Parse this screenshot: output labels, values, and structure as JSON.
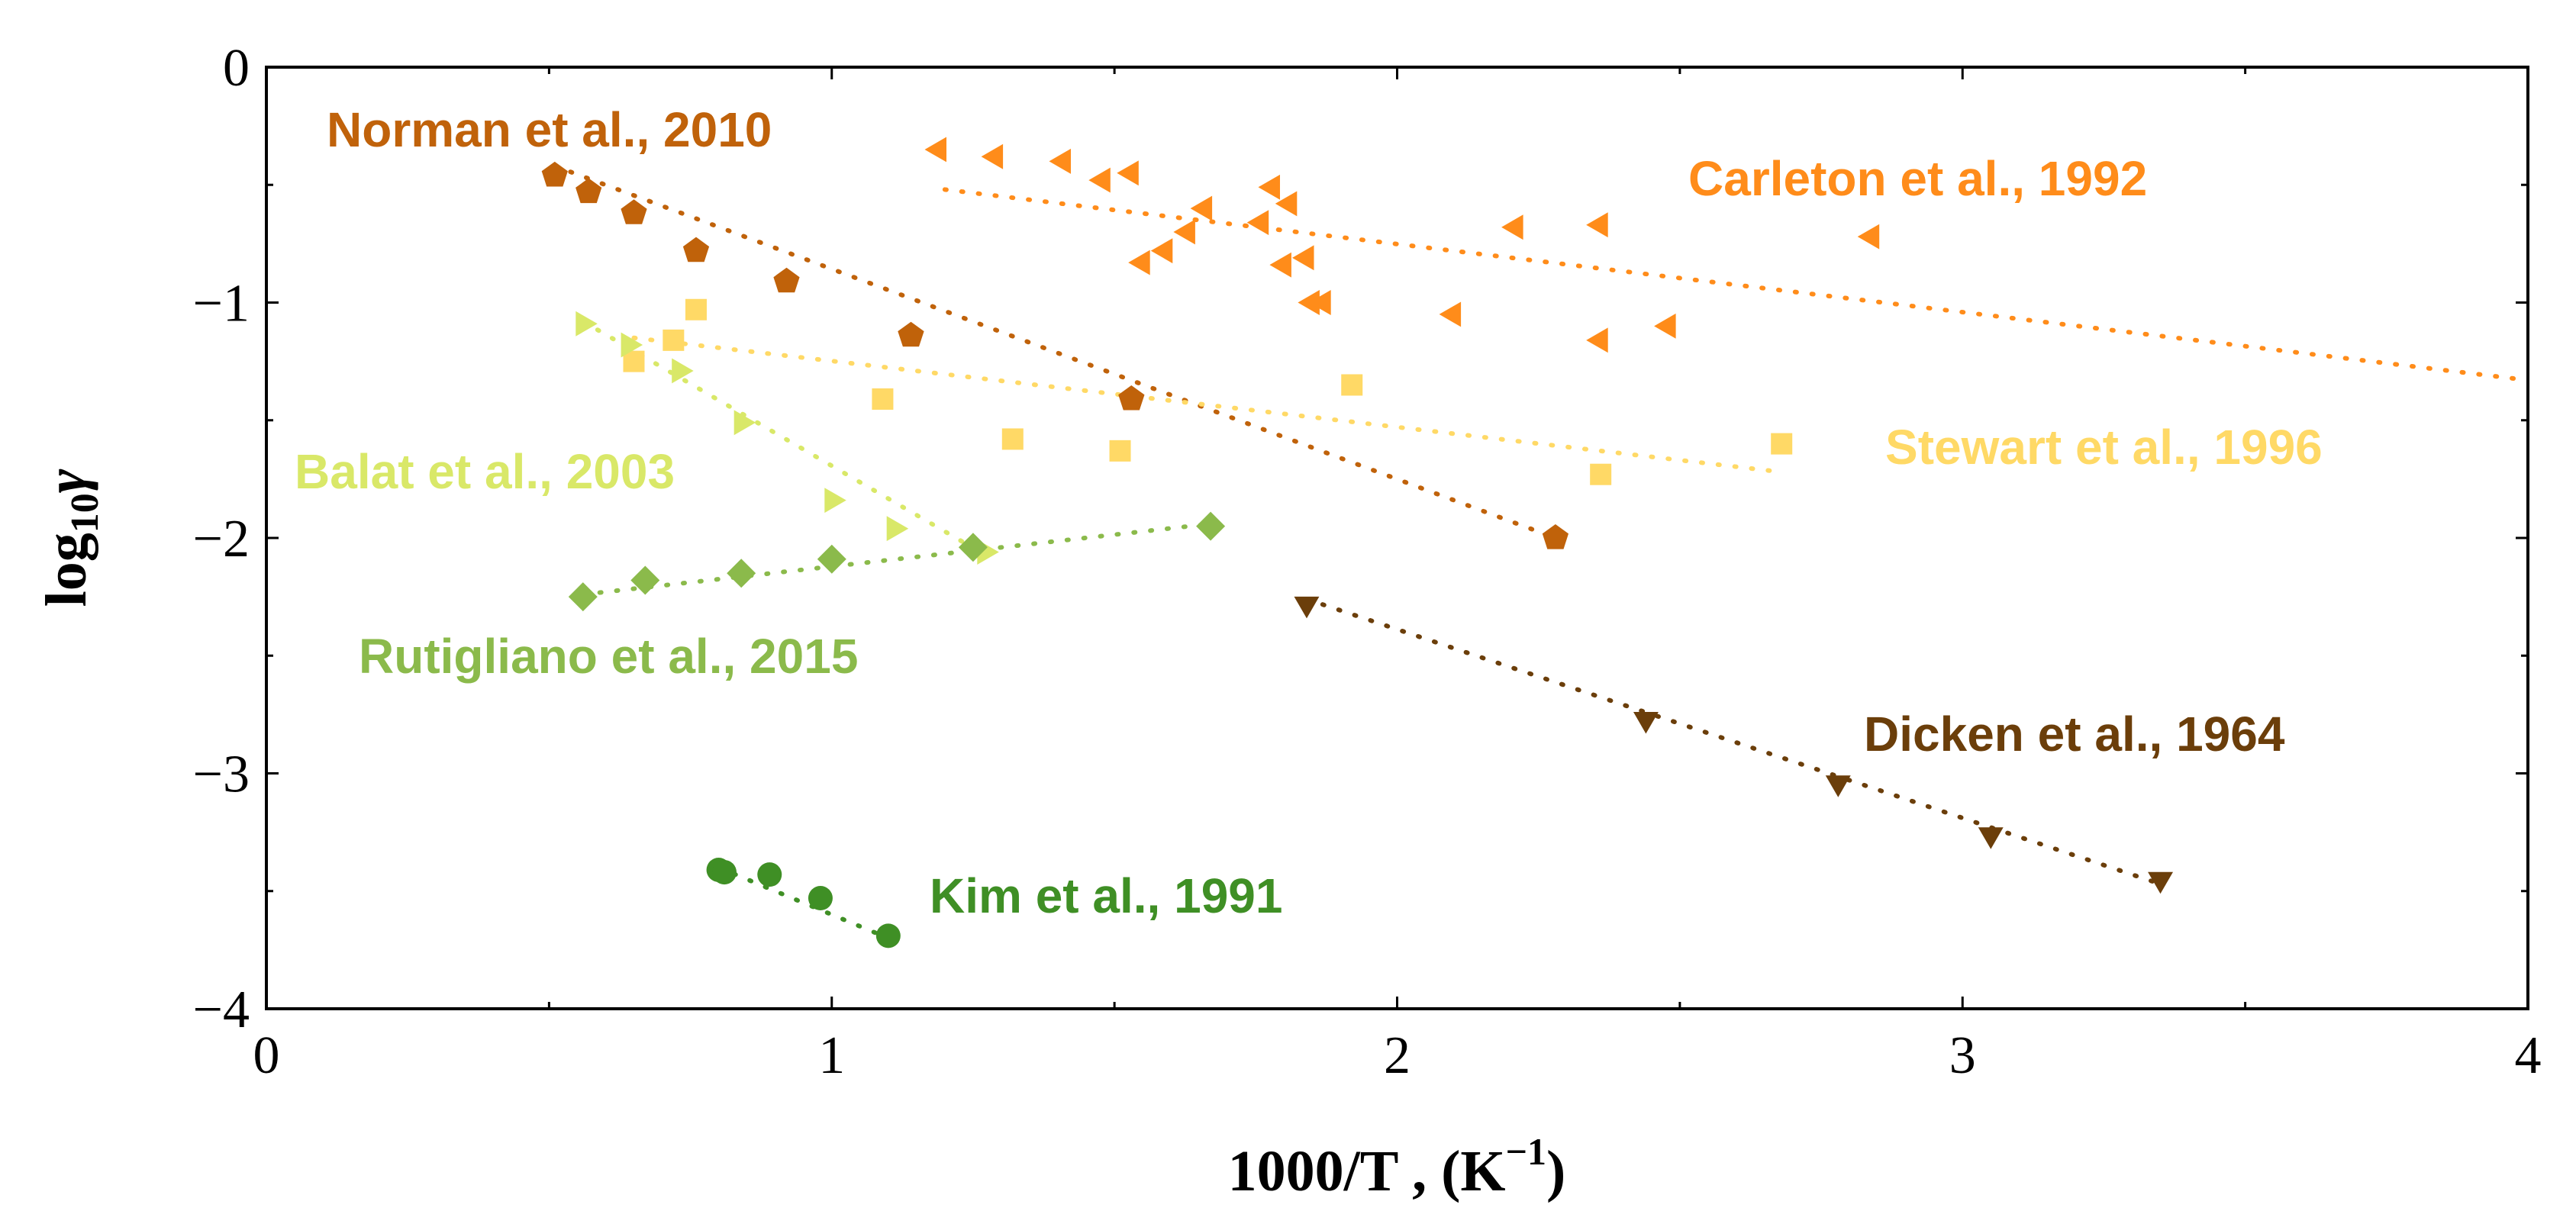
{
  "chart_data": {
    "type": "scatter",
    "title": "",
    "xlabel_main": "1000/T ,  (K",
    "xlabel_sup": "−1",
    "xlabel_tail": ")",
    "ylabel_main": "log",
    "ylabel_sub": "10",
    "ylabel_symbol": "γ",
    "xlim": [
      0,
      4
    ],
    "ylim": [
      -4,
      0
    ],
    "xticks": [
      0,
      1,
      2,
      3,
      4
    ],
    "xtick_labels": [
      "0",
      "1",
      "2",
      "3",
      "4"
    ],
    "yticks": [
      0,
      -1,
      -2,
      -3,
      -4
    ],
    "ytick_labels": [
      "0",
      "−1",
      "−2",
      "−3",
      "−4"
    ],
    "grid": false,
    "series": [
      {
        "name": "Norman et al., 2010",
        "color": "#C0620A",
        "marker": "pentagon",
        "x": [
          0.51,
          0.57,
          0.65,
          0.76,
          0.92,
          1.14,
          1.53,
          2.28
        ],
        "y": [
          -0.46,
          -0.53,
          -0.62,
          -0.78,
          -0.91,
          -1.14,
          -1.41,
          -2.0
        ],
        "fit": {
          "x": [
            0.51,
            2.28
          ],
          "y": [
            -0.42,
            -2.0
          ]
        }
      },
      {
        "name": "Carleton et al., 1992",
        "color": "#FF8C1A",
        "marker": "triangle-left",
        "x": [
          1.19,
          1.29,
          1.41,
          1.48,
          1.53,
          1.55,
          1.59,
          1.63,
          1.66,
          1.76,
          1.78,
          1.8,
          1.81,
          1.84,
          1.85,
          1.87,
          2.1,
          2.21,
          2.36,
          2.36,
          2.48,
          2.84
        ],
        "y": [
          -0.35,
          -0.38,
          -0.4,
          -0.48,
          -0.45,
          -0.83,
          -0.78,
          -0.7,
          -0.6,
          -0.66,
          -0.51,
          -0.84,
          -0.58,
          -0.81,
          -1.0,
          -1.0,
          -1.05,
          -0.68,
          -0.67,
          -1.16,
          -1.1,
          -0.72
        ],
        "fit": {
          "x": [
            1.2,
            4.0
          ],
          "y": [
            -0.52,
            -1.33
          ]
        }
      },
      {
        "name": "Stewart et al., 1996",
        "color": "#FFD966",
        "marker": "square",
        "x": [
          0.65,
          0.72,
          0.76,
          1.09,
          1.32,
          1.51,
          1.92,
          2.36,
          2.68
        ],
        "y": [
          -1.25,
          -1.16,
          -1.03,
          -1.41,
          -1.58,
          -1.63,
          -1.35,
          -1.73,
          -1.6
        ],
        "fit": {
          "x": [
            0.65,
            2.68
          ],
          "y": [
            -1.15,
            -1.72
          ]
        }
      },
      {
        "name": "Balat et al., 2003",
        "color": "#D9E868",
        "marker": "triangle-right",
        "x": [
          0.56,
          0.64,
          0.73,
          0.84,
          1.0,
          1.11,
          1.27
        ],
        "y": [
          -1.09,
          -1.18,
          -1.29,
          -1.51,
          -1.84,
          -1.96,
          -2.06
        ],
        "fit": {
          "x": [
            0.56,
            1.27
          ],
          "y": [
            -1.08,
            -2.07
          ]
        }
      },
      {
        "name": "Rutigliano et al., 2015",
        "color": "#8BBA4B",
        "marker": "diamond",
        "x": [
          0.56,
          0.67,
          0.84,
          1.0,
          1.25,
          1.67
        ],
        "y": [
          -2.25,
          -2.18,
          -2.15,
          -2.09,
          -2.04,
          -1.95
        ],
        "fit": {
          "x": [
            0.56,
            1.67
          ],
          "y": [
            -2.24,
            -1.94
          ]
        }
      },
      {
        "name": "Dicken et al., 1964",
        "color": "#6B3E0A",
        "marker": "triangle-down",
        "x": [
          1.84,
          2.44,
          2.78,
          3.05,
          3.35
        ],
        "y": [
          -2.28,
          -2.77,
          -3.04,
          -3.26,
          -3.45
        ],
        "fit": {
          "x": [
            1.84,
            3.35
          ],
          "y": [
            -2.26,
            -3.47
          ]
        }
      },
      {
        "name": "Kim et al., 1991",
        "color": "#3F8F25",
        "marker": "circle",
        "x": [
          0.8,
          0.81,
          0.89,
          0.98,
          1.1
        ],
        "y": [
          -3.41,
          -3.42,
          -3.43,
          -3.53,
          -3.69
        ],
        "fit": {
          "x": [
            0.8,
            1.1
          ],
          "y": [
            -3.4,
            -3.7
          ]
        }
      }
    ]
  }
}
